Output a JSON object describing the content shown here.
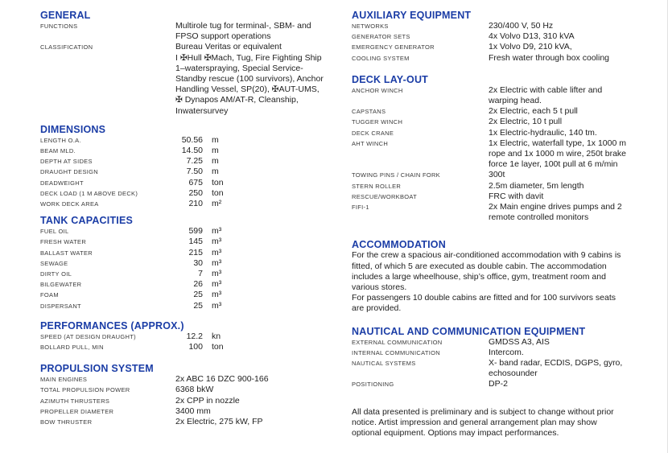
{
  "colors": {
    "heading_blue": "#1b3da6",
    "label_gray": "#3a3a3a",
    "value_black": "#1e1e1e",
    "background": "#ffffff"
  },
  "left_column": {
    "sections": [
      {
        "id": "general",
        "title": "GENERAL",
        "type": "pairs",
        "rows": [
          {
            "label": "FUNCTIONS",
            "value": "Multirole tug for terminal-, SBM- and\nFPSO support operations"
          },
          {
            "label": "CLASSIFICATION",
            "value": "Bureau Veritas or equivalent\nI ✠Hull ✠Mach, Tug, Fire Fighting Ship\n1–waterspraying, Special Service-\nStandby rescue (100 survivors), Anchor\nHandling Vessel, SP(20), ✠AUT-UMS,\n✠ Dynapos AM/AT-R, Cleanship,\nInwatersurvey"
          }
        ]
      },
      {
        "id": "dimensions",
        "title": "DIMENSIONS",
        "type": "measurements",
        "rows": [
          {
            "label": "LENGTH O.A.",
            "num": "50.56",
            "unit": "m"
          },
          {
            "label": "BEAM MLD.",
            "num": "14.50",
            "unit": "m"
          },
          {
            "label": "DEPTH AT SIDES",
            "num": "7.25",
            "unit": "m"
          },
          {
            "label": "DRAUGHT DESIGN",
            "num": "7.50",
            "unit": "m"
          },
          {
            "label": "DEADWEIGHT",
            "num": "675",
            "unit": "ton"
          },
          {
            "label": "DECK LOAD (1 M ABOVE DECK)",
            "num": "250",
            "unit": "ton"
          },
          {
            "label": "WORK DECK AREA",
            "num": "210",
            "unit": "m²"
          }
        ]
      },
      {
        "id": "tank-capacities",
        "title": "TANK CAPACITIES",
        "type": "measurements",
        "rows": [
          {
            "label": "FUEL OIL",
            "num": "599",
            "unit": "m³"
          },
          {
            "label": "FRESH WATER",
            "num": "145",
            "unit": "m³"
          },
          {
            "label": "BALLAST WATER",
            "num": "215",
            "unit": "m³"
          },
          {
            "label": "SEWAGE",
            "num": "30",
            "unit": "m³"
          },
          {
            "label": "DIRTY OIL",
            "num": "7",
            "unit": "m³"
          },
          {
            "label": "BILGEWATER",
            "num": "26",
            "unit": "m³"
          },
          {
            "label": "FOAM",
            "num": "25",
            "unit": "m³"
          },
          {
            "label": "DISPERSANT",
            "num": "25",
            "unit": "m³"
          }
        ]
      },
      {
        "id": "performances",
        "title": "PERFORMANCES (APPROX.)",
        "type": "measurements",
        "rows": [
          {
            "label": "SPEED (AT DESIGN DRAUGHT)",
            "num": "12.2",
            "unit": "kn"
          },
          {
            "label": "BOLLARD PULL, MIN",
            "num": "100",
            "unit": "ton"
          }
        ]
      },
      {
        "id": "propulsion-system",
        "title": "PROPULSION SYSTEM",
        "type": "pairs",
        "rows": [
          {
            "label": "MAIN ENGINES",
            "value": "2x ABC 16 DZC 900-166"
          },
          {
            "label": "TOTAL PROPULSION POWER",
            "value": "6368 bkW"
          },
          {
            "label": "AZIMUTH THRUSTERS",
            "value": "2x CPP in nozzle"
          },
          {
            "label": "PROPELLER DIAMETER",
            "value": "3400 mm"
          },
          {
            "label": "BOW THRUSTER",
            "value": "2x Electric, 275 kW, FP"
          }
        ]
      }
    ]
  },
  "right_column": {
    "sections": [
      {
        "id": "auxiliary-equipment",
        "title": "AUXILIARY EQUIPMENT",
        "type": "pairs",
        "rows": [
          {
            "label": "NETWORKS",
            "value": "230/400 V, 50 Hz"
          },
          {
            "label": "GENERATOR SETS",
            "value": "4x Volvo D13, 310 kVA"
          },
          {
            "label": "EMERGENCY GENERATOR",
            "value": "1x Volvo D9, 210 kVA,"
          },
          {
            "label": "COOLING SYSTEM",
            "value": "Fresh water through box cooling"
          }
        ]
      },
      {
        "id": "deck-lay-out",
        "title": "DECK LAY-OUT",
        "type": "pairs",
        "rows": [
          {
            "label": "ANCHOR WINCH",
            "value": "2x Electric with cable lifter and\nwarping head."
          },
          {
            "label": "CAPSTANS",
            "value": "2x Electric, each 5 t pull"
          },
          {
            "label": "TUGGER WINCH",
            "value": "2x Electric, 10 t pull"
          },
          {
            "label": "DECK CRANE",
            "value": "1x Electric-hydraulic, 140 tm."
          },
          {
            "label": "AHT WINCH",
            "value": "1x Electric, waterfall type, 1x 1000 m\nrope and 1x 1000 m wire, 250t brake\nforce 1e layer, 100t pull at 6 m/min"
          },
          {
            "label": "TOWING PINS / CHAIN FORK",
            "value": "300t"
          },
          {
            "label": "STERN ROLLER",
            "value": "2.5m diameter, 5m length"
          },
          {
            "label": "RESCUE/WORKBOAT",
            "value": "FRC with davit"
          },
          {
            "label": "FIFI-1",
            "value": "2x Main engine drives pumps and 2\nremote controlled monitors"
          }
        ]
      },
      {
        "id": "accommodation",
        "title": "ACCOMMODATION",
        "type": "paragraph",
        "text": "For the crew a spacious air-conditioned accommodation with 9 cabins is\nfitted, of which 5 are executed as double cabin. The accommodation\nincludes a large wheelhouse, ship’s office, gym, treatment room and\nvarious stores.\nFor passengers 10 double cabins are fitted and for 100 survivors seats\nare provided."
      },
      {
        "id": "nautical-communication",
        "title": "NAUTICAL AND COMMUNICATION EQUIPMENT",
        "type": "pairs",
        "rows": [
          {
            "label": "EXTERNAL COMMUNICATION",
            "value": "GMDSS A3, AIS"
          },
          {
            "label": "INTERNAL COMMUNICATION",
            "value": "Intercom."
          },
          {
            "label": "NAUTICAL SYSTEMS",
            "value": "X- band radar, ECDIS, DGPS, gyro,\nechosounder"
          },
          {
            "label": "POSITIONING",
            "value": "DP-2"
          }
        ]
      }
    ],
    "disclaimer": {
      "text": "All data presented is preliminary and is subject to change without prior\nnotice. Artist impression and general arrangement plan may show\noptional equipment. Options may impact performances."
    }
  }
}
